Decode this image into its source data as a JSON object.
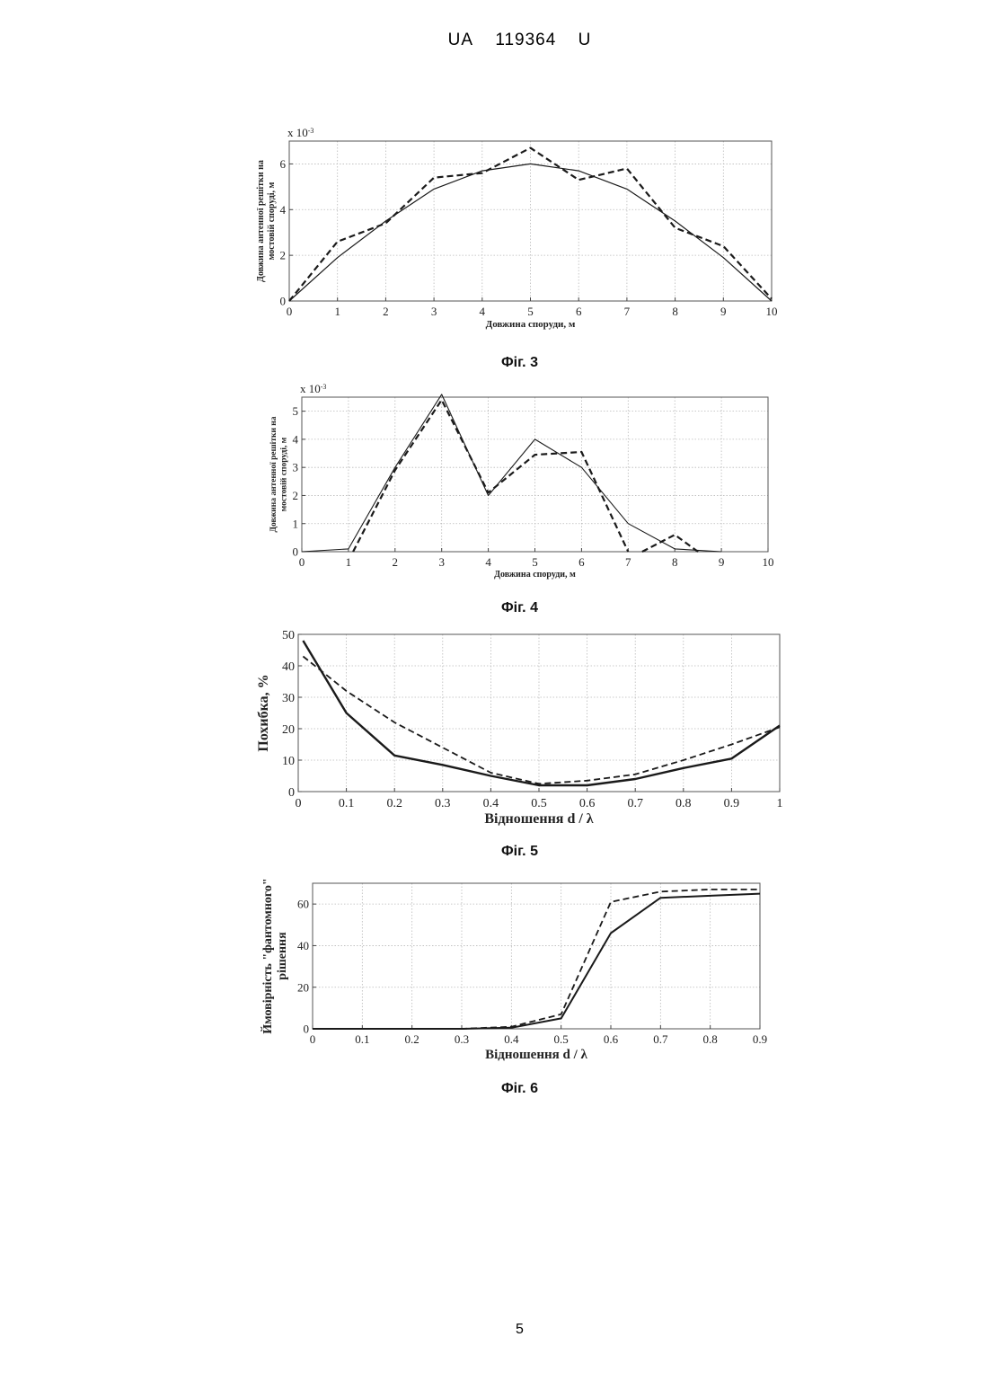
{
  "header": {
    "office": "UA",
    "number": "119364",
    "kind": "U"
  },
  "page_number": "5",
  "captions": [
    "Фіг. 3",
    "Фіг. 4",
    "Фіг. 5",
    "Фіг. 6"
  ],
  "chart_data": [
    {
      "type": "line",
      "title": "",
      "xlabel": "Довжина споруди, м",
      "ylabel": "Довжина антенної решітки на мостовій споруді, м",
      "exponent_label": "x 10",
      "exponent_power": "-3",
      "xlim": [
        0,
        10
      ],
      "ylim": [
        0,
        7
      ],
      "xticks": [
        "0",
        "1",
        "2",
        "3",
        "4",
        "5",
        "6",
        "7",
        "8",
        "9",
        "10"
      ],
      "yticks": [
        "0",
        "2",
        "4",
        "6"
      ],
      "grid": true,
      "series": [
        {
          "style": "solid",
          "x": [
            0,
            1,
            2,
            3,
            4,
            5,
            6,
            7,
            8,
            9,
            10
          ],
          "y": [
            0,
            1.9,
            3.5,
            4.9,
            5.7,
            6.0,
            5.7,
            4.9,
            3.5,
            1.9,
            0
          ]
        },
        {
          "style": "dashed",
          "x": [
            0,
            1,
            2,
            3,
            4,
            5,
            6,
            7,
            8,
            9,
            10
          ],
          "y": [
            0,
            2.6,
            3.4,
            5.4,
            5.6,
            6.7,
            5.3,
            5.8,
            3.2,
            2.4,
            0.1
          ]
        }
      ]
    },
    {
      "type": "line",
      "title": "",
      "xlabel": "Довжина споруди, м",
      "ylabel": "Довжина антенної решітки на мостовій споруді, м",
      "exponent_label": "x 10",
      "exponent_power": "-3",
      "xlim": [
        0,
        10
      ],
      "ylim": [
        0,
        5.5
      ],
      "xticks": [
        "0",
        "1",
        "2",
        "3",
        "4",
        "5",
        "6",
        "7",
        "8",
        "9",
        "10"
      ],
      "yticks": [
        "0",
        "1",
        "2",
        "3",
        "4",
        "5"
      ],
      "grid": true,
      "series": [
        {
          "style": "solid",
          "x": [
            0,
            1,
            2,
            3,
            4,
            5,
            6,
            7,
            8,
            9
          ],
          "y": [
            0,
            0.1,
            3.0,
            5.6,
            2.0,
            4.0,
            3.0,
            1.0,
            0.1,
            0
          ]
        },
        {
          "style": "dashed",
          "x": [
            1.1,
            2,
            3,
            4,
            5,
            6,
            7
          ],
          "y": [
            0,
            2.9,
            5.4,
            2.1,
            3.45,
            3.55,
            0
          ]
        },
        {
          "style": "dashed",
          "x": [
            7.3,
            8,
            8.5
          ],
          "y": [
            0,
            0.6,
            0
          ]
        }
      ]
    },
    {
      "type": "line",
      "title": "",
      "xlabel": "Відношення d / λ",
      "ylabel": "Похибка, %",
      "xlim": [
        0,
        1
      ],
      "ylim": [
        0,
        50
      ],
      "xticks": [
        "0",
        "0.1",
        "0.2",
        "0.3",
        "0.4",
        "0.5",
        "0.6",
        "0.7",
        "0.8",
        "0.9",
        "1"
      ],
      "yticks": [
        "0",
        "10",
        "20",
        "30",
        "40",
        "50"
      ],
      "grid": true,
      "series": [
        {
          "style": "solid",
          "x": [
            0.01,
            0.1,
            0.2,
            0.3,
            0.4,
            0.5,
            0.6,
            0.7,
            0.8,
            0.9,
            1.0
          ],
          "y": [
            48,
            25,
            11.5,
            8.5,
            5,
            2,
            2,
            4,
            7.5,
            10.5,
            21
          ]
        },
        {
          "style": "dashed",
          "x": [
            0.01,
            0.1,
            0.2,
            0.3,
            0.4,
            0.5,
            0.6,
            0.7,
            0.8,
            0.9,
            1.0
          ],
          "y": [
            43,
            32,
            22,
            14,
            6,
            2.5,
            3.5,
            5.5,
            10,
            15,
            20.5
          ]
        }
      ]
    },
    {
      "type": "line",
      "title": "",
      "xlabel": "Відношення d / λ",
      "ylabel": "Ймовірність \"фантомного\" рішення",
      "xlim": [
        0,
        0.9
      ],
      "ylim": [
        0,
        70
      ],
      "xticks": [
        "0",
        "0.1",
        "0.2",
        "0.3",
        "0.4",
        "0.5",
        "0.6",
        "0.7",
        "0.8",
        "0.9"
      ],
      "yticks": [
        "0",
        "20",
        "40",
        "60"
      ],
      "grid": true,
      "series": [
        {
          "style": "solid",
          "x": [
            0,
            0.1,
            0.2,
            0.3,
            0.4,
            0.5,
            0.6,
            0.7,
            0.8,
            0.9
          ],
          "y": [
            0,
            0,
            0,
            0,
            0.5,
            5,
            46,
            63,
            64,
            65
          ]
        },
        {
          "style": "dashed",
          "x": [
            0,
            0.1,
            0.2,
            0.3,
            0.4,
            0.5,
            0.6,
            0.7,
            0.8,
            0.9
          ],
          "y": [
            0,
            0,
            0,
            0,
            1,
            7,
            61,
            66,
            67,
            67
          ]
        }
      ]
    }
  ]
}
